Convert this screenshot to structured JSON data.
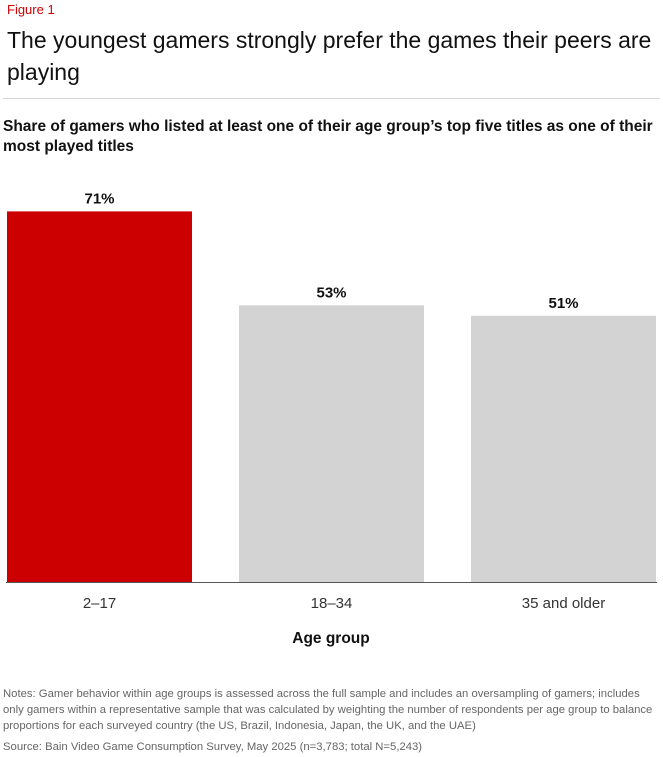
{
  "figure_label": "Figure 1",
  "title": "The youngest gamers strongly prefer the games their peers are playing",
  "chart_data": {
    "type": "bar",
    "title": "Share of gamers who listed at least one of their age group’s top five titles as one of their most played titles",
    "categories": [
      "2–17",
      "18–34",
      "35 and older"
    ],
    "values": [
      71,
      53,
      51
    ],
    "data_labels": [
      "71%",
      "53%",
      "51%"
    ],
    "colors": [
      "#cc0000",
      "#d3d3d3",
      "#d3d3d3"
    ],
    "xlabel": "Age group",
    "ylabel": "",
    "ylim": [
      0,
      100
    ],
    "grid": false
  },
  "notes": "Notes: Gamer behavior within age groups is assessed across the full sample and includes an oversampling of gamers; includes only gamers within a representative sample that was calculated by weighting the number of respondents per age group to balance proportions for each surveyed country (the US, Brazil, Indonesia, Japan, the UK, and the UAE)",
  "source": "Source: Bain Video Game Consumption Survey, May 2025 (n=3,783; total N=5,243)"
}
